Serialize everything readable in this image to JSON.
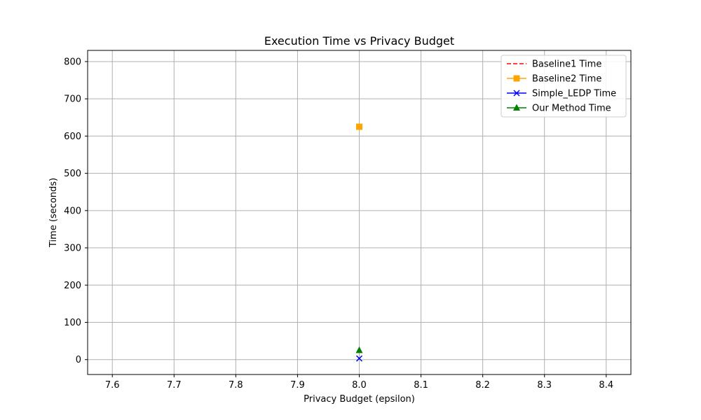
{
  "chart_data": {
    "type": "line",
    "title": "Execution Time vs Privacy Budget",
    "xlabel": "Privacy Budget (epsilon)",
    "ylabel": "Time (seconds)",
    "xlim": [
      7.56,
      8.44
    ],
    "ylim": [
      -40,
      830
    ],
    "xticks": [
      7.6,
      7.7,
      7.8,
      7.9,
      8.0,
      8.1,
      8.2,
      8.3,
      8.4
    ],
    "xtick_labels": [
      "7.6",
      "7.7",
      "7.8",
      "7.9",
      "8.0",
      "8.1",
      "8.2",
      "8.3",
      "8.4"
    ],
    "yticks": [
      0,
      100,
      200,
      300,
      400,
      500,
      600,
      700,
      800
    ],
    "ytick_labels": [
      "0",
      "100",
      "200",
      "300",
      "400",
      "500",
      "600",
      "700",
      "800"
    ],
    "grid": true,
    "legend_position": "top-right",
    "series": [
      {
        "name": "Baseline1 Time",
        "color": "#ff0000",
        "linestyle": "dashed",
        "marker": "none",
        "x": [],
        "y": []
      },
      {
        "name": "Baseline2 Time",
        "color": "#ffa500",
        "linestyle": "solid",
        "marker": "square",
        "x": [
          8.0
        ],
        "y": [
          625
        ]
      },
      {
        "name": "Simple_LEDP Time",
        "color": "#0000ff",
        "linestyle": "solid",
        "marker": "x",
        "x": [
          8.0
        ],
        "y": [
          3
        ]
      },
      {
        "name": "Our Method Time",
        "color": "#008000",
        "linestyle": "solid",
        "marker": "triangle",
        "x": [
          8.0
        ],
        "y": [
          25
        ]
      }
    ]
  }
}
